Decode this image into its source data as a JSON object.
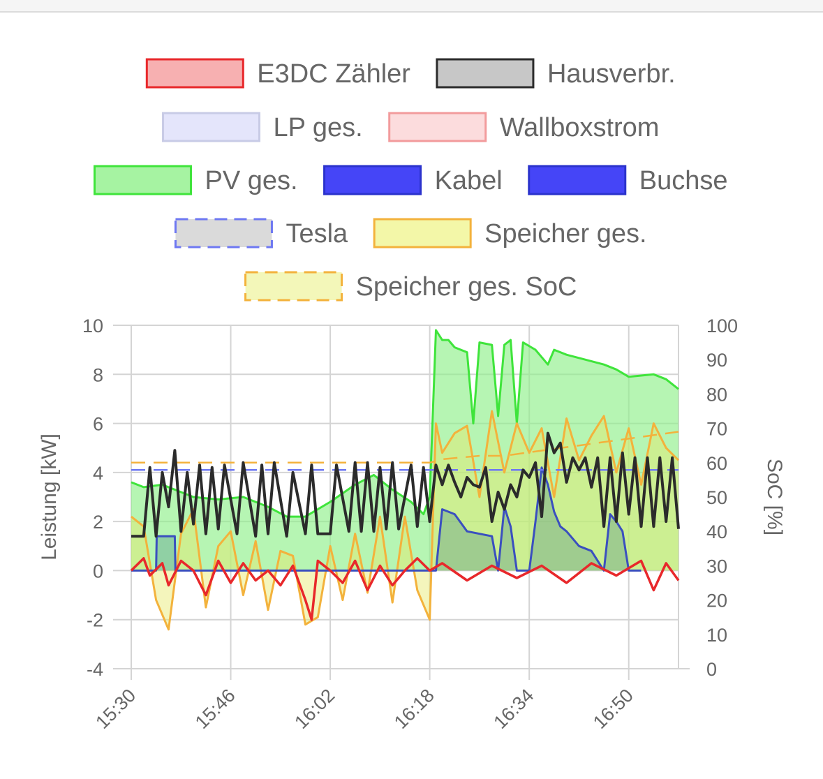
{
  "header": {
    "title": ""
  },
  "chart_data": {
    "type": "area",
    "title": "",
    "x_label": "",
    "y_left_label": "Leistung [kW]",
    "y_right_label": "SoC [%]",
    "y_left_range": [
      -4,
      10
    ],
    "y_left_ticks": [
      "10",
      "8",
      "6",
      "4",
      "2",
      "0",
      "-2",
      "-4"
    ],
    "y_right_range": [
      0,
      100
    ],
    "y_right_ticks": [
      "100",
      "90",
      "80",
      "70",
      "60",
      "50",
      "40",
      "30",
      "20",
      "10",
      "0"
    ],
    "x_ticks": [
      "15:30",
      "15:46",
      "16:02",
      "16:18",
      "16:34",
      "16:50"
    ],
    "x_range": [
      "15:30",
      "16:58"
    ],
    "grid": true,
    "legend_position": "top",
    "legend": [
      {
        "name": "E3DC Zähler",
        "stroke": "#e8282b",
        "fill": "#f7b0b1",
        "dashed": false
      },
      {
        "name": "Hausverbr.",
        "stroke": "#2b2b2b",
        "fill": "#c7c7c7",
        "dashed": false
      },
      {
        "name": "LP ges.",
        "stroke": "#c8cbe6",
        "fill": "#e4e5fb",
        "dashed": false
      },
      {
        "name": "Wallboxstrom",
        "stroke": "#f29b9c",
        "fill": "#fcdcdd",
        "dashed": false
      },
      {
        "name": "PV ges.",
        "stroke": "#3fe43b",
        "fill": "#a6f3a2",
        "dashed": false
      },
      {
        "name": "Kabel",
        "stroke": "#2b33cc",
        "fill": "#4545f7",
        "dashed": false
      },
      {
        "name": "Buchse",
        "stroke": "#2b33cc",
        "fill": "#4545f7",
        "dashed": false
      },
      {
        "name": "Tesla",
        "stroke": "#6e78f2",
        "fill": "#dadada",
        "dashed": true
      },
      {
        "name": "Speicher ges.",
        "stroke": "#f3b23c",
        "fill": "#f3f7a8",
        "dashed": false
      },
      {
        "name": "Speicher ges. SoC",
        "stroke": "#f3b23c",
        "fill": "#f3f7b9",
        "dashed": true
      }
    ],
    "series": [
      {
        "name": "PV ges.",
        "axis": "left",
        "x": [
          "15:30",
          "15:32",
          "15:35",
          "15:38",
          "15:40",
          "15:44",
          "15:48",
          "15:52",
          "15:55",
          "15:58",
          "16:02",
          "16:06",
          "16:09",
          "16:12",
          "16:15",
          "16:17",
          "16:18",
          "16:19",
          "16:20",
          "16:21",
          "16:22",
          "16:24",
          "16:25",
          "16:26",
          "16:28",
          "16:29",
          "16:30",
          "16:31",
          "16:32",
          "16:33",
          "16:35",
          "16:37",
          "16:38",
          "16:40",
          "16:43",
          "16:46",
          "16:48",
          "16:50",
          "16:54",
          "16:56",
          "16:58"
        ],
        "values": [
          3.6,
          3.4,
          3.5,
          3.2,
          3.0,
          2.9,
          3.0,
          2.6,
          2.2,
          2.2,
          2.8,
          3.5,
          3.9,
          3.3,
          2.8,
          2.3,
          3.0,
          9.8,
          9.4,
          9.4,
          9.1,
          8.9,
          6.0,
          9.3,
          9.2,
          6.3,
          9.2,
          9.4,
          6.0,
          9.3,
          9.0,
          8.4,
          9.0,
          8.8,
          8.6,
          8.4,
          8.2,
          7.9,
          8.0,
          7.8,
          7.4
        ]
      },
      {
        "name": "Hausverbr.",
        "axis": "left",
        "x": [
          "15:30",
          "15:32",
          "15:33",
          "15:34",
          "15:35",
          "15:36",
          "15:37",
          "15:38",
          "15:39",
          "15:40",
          "15:41",
          "15:42",
          "15:43",
          "15:44",
          "15:45",
          "15:47",
          "15:48",
          "15:50",
          "15:51",
          "15:52",
          "15:53",
          "15:55",
          "15:56",
          "15:58",
          "15:59",
          "16:00",
          "16:02",
          "16:03",
          "16:05",
          "16:06",
          "16:07",
          "16:08",
          "16:09",
          "16:10",
          "16:11",
          "16:12",
          "16:13",
          "16:15",
          "16:16",
          "16:17",
          "16:18",
          "16:19",
          "16:20",
          "16:21",
          "16:22",
          "16:23",
          "16:24",
          "16:25",
          "16:26",
          "16:27",
          "16:28",
          "16:29",
          "16:30",
          "16:31",
          "16:32",
          "16:33",
          "16:34",
          "16:35",
          "16:36",
          "16:37",
          "16:38",
          "16:39",
          "16:40",
          "16:41",
          "16:42",
          "16:43",
          "16:44",
          "16:45",
          "16:46",
          "16:47",
          "16:48",
          "16:49",
          "16:50",
          "16:51",
          "16:52",
          "16:53",
          "16:54",
          "16:55",
          "16:56",
          "16:57",
          "16:58"
        ],
        "values": [
          1.4,
          1.4,
          4.2,
          1.4,
          4.0,
          2.6,
          4.9,
          1.6,
          4.0,
          1.9,
          4.3,
          1.5,
          4.2,
          1.7,
          4.3,
          1.5,
          4.4,
          1.4,
          4.3,
          1.5,
          4.4,
          1.4,
          4.0,
          1.5,
          4.3,
          1.5,
          1.5,
          4.3,
          1.6,
          4.4,
          1.6,
          4.4,
          1.6,
          4.2,
          1.7,
          4.4,
          1.7,
          4.3,
          1.8,
          4.2,
          2.0,
          4.3,
          3.5,
          4.3,
          3.6,
          3.0,
          3.8,
          3.5,
          3.4,
          4.2,
          2.0,
          3.2,
          2.5,
          3.5,
          3.0,
          4.1,
          3.8,
          4.4,
          2.2,
          5.6,
          4.8,
          5.2,
          3.6,
          4.6,
          4.1,
          4.6,
          3.4,
          4.6,
          1.8,
          4.6,
          2.0,
          4.8,
          2.3,
          4.6,
          1.8,
          4.6,
          1.8,
          4.6,
          2.0,
          4.6,
          1.7
        ]
      },
      {
        "name": "Speicher ges.",
        "axis": "left",
        "x": [
          "15:30",
          "15:32",
          "15:34",
          "15:36",
          "15:38",
          "15:40",
          "15:42",
          "15:44",
          "15:46",
          "15:48",
          "15:50",
          "15:52",
          "15:54",
          "15:56",
          "15:58",
          "16:00",
          "16:02",
          "16:04",
          "16:06",
          "16:08",
          "16:10",
          "16:12",
          "16:14",
          "16:16",
          "16:18",
          "16:19",
          "16:20",
          "16:22",
          "16:24",
          "16:26",
          "16:28",
          "16:30",
          "16:32",
          "16:34",
          "16:36",
          "16:38",
          "16:40",
          "16:42",
          "16:44",
          "16:46",
          "16:48",
          "16:50",
          "16:52",
          "16:54",
          "16:56",
          "16:58"
        ],
        "values": [
          2.2,
          1.8,
          -1.2,
          -2.4,
          1.5,
          2.5,
          -1.5,
          1.0,
          1.6,
          -1.0,
          1.2,
          -1.6,
          0.8,
          0.6,
          -2.2,
          -1.9,
          1.0,
          -1.2,
          1.5,
          -0.9,
          2.2,
          -1.3,
          2.2,
          -0.8,
          -2.0,
          6.0,
          4.8,
          5.6,
          5.9,
          3.0,
          6.5,
          4.0,
          6.0,
          4.8,
          5.8,
          3.0,
          6.2,
          4.5,
          5.5,
          6.3,
          4.0,
          5.8,
          3.5,
          6.0,
          5.0,
          4.5
        ]
      },
      {
        "name": "E3DC Zähler",
        "axis": "left",
        "x": [
          "15:30",
          "15:32",
          "15:33",
          "15:35",
          "15:36",
          "15:38",
          "15:40",
          "15:42",
          "15:44",
          "15:46",
          "15:48",
          "15:50",
          "15:52",
          "15:54",
          "15:56",
          "15:58",
          "15:59",
          "16:00",
          "16:02",
          "16:04",
          "16:06",
          "16:08",
          "16:10",
          "16:12",
          "16:14",
          "16:16",
          "16:18",
          "16:20",
          "16:24",
          "16:28",
          "16:32",
          "16:36",
          "16:40",
          "16:44",
          "16:48",
          "16:52",
          "16:54",
          "16:56",
          "16:58"
        ],
        "values": [
          0.0,
          0.5,
          -0.2,
          0.3,
          -0.6,
          0.4,
          0.0,
          -1.0,
          0.4,
          -0.5,
          0.3,
          -0.4,
          0.0,
          -0.6,
          0.2,
          -1.2,
          -2.0,
          0.4,
          0.0,
          -0.5,
          0.4,
          -0.8,
          0.2,
          -0.6,
          0.0,
          0.5,
          0.0,
          0.3,
          -0.4,
          0.2,
          -0.3,
          0.2,
          -0.5,
          0.3,
          -0.2,
          0.4,
          -0.8,
          0.3,
          -0.4
        ]
      },
      {
        "name": "Kabel",
        "axis": "left",
        "x": [
          "15:30",
          "15:34",
          "15:34.1",
          "15:37",
          "15:37.1",
          "16:19",
          "16:20",
          "16:22",
          "16:24",
          "16:26",
          "16:28",
          "16:29",
          "16:30",
          "16:31",
          "16:32",
          "16:33",
          "16:34",
          "16:35",
          "16:36",
          "16:37",
          "16:38",
          "16:39",
          "16:40",
          "16:42",
          "16:44",
          "16:46",
          "16:47",
          "16:48",
          "16:49",
          "16:50",
          "16:51",
          "16:52"
        ],
        "values": [
          0.0,
          0.0,
          1.4,
          1.4,
          0.0,
          0.0,
          2.5,
          2.3,
          1.6,
          1.5,
          1.4,
          0.0,
          2.6,
          1.8,
          0.0,
          0.0,
          0.0,
          2.0,
          4.2,
          3.5,
          2.4,
          1.8,
          1.6,
          1.0,
          0.8,
          0.0,
          2.3,
          2.0,
          1.6,
          0.0,
          0.0,
          0.0
        ]
      },
      {
        "name": "Tesla",
        "axis": "left",
        "x": [
          "15:30",
          "16:58"
        ],
        "values": [
          4.1,
          4.1
        ]
      },
      {
        "name": "Speicher ges. SoC",
        "axis": "right",
        "x": [
          "15:30",
          "16:18",
          "16:20",
          "16:26",
          "16:30",
          "16:34",
          "16:38",
          "16:42",
          "16:46",
          "16:50",
          "16:54",
          "16:58"
        ],
        "values": [
          60,
          60,
          61,
          62,
          62,
          63,
          64,
          65,
          66,
          67,
          68,
          69
        ]
      }
    ]
  }
}
